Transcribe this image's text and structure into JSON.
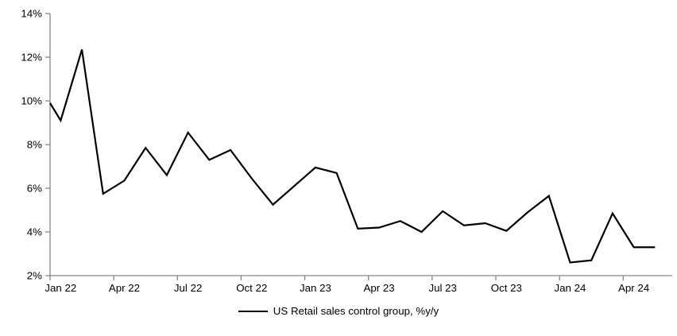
{
  "chart_data": {
    "type": "line",
    "title": "",
    "legend_label": "US Retail sales control group, %y/y",
    "legend_position": "bottom-center",
    "x": [
      "Jan 22",
      "Feb 22",
      "Mar 22",
      "Apr 22",
      "May 22",
      "Jun 22",
      "Jul 22",
      "Aug 22",
      "Sep 22",
      "Oct 22",
      "Nov 22",
      "Dec 22",
      "Jan 23",
      "Feb 23",
      "Mar 23",
      "Apr 23",
      "May 23",
      "Jun 23",
      "Jul 23",
      "Aug 23",
      "Sep 23",
      "Oct 23",
      "Nov 23",
      "Dec 23",
      "Jan 24",
      "Feb 24",
      "Mar 24",
      "Apr 24",
      "May 24"
    ],
    "series": [
      {
        "name": "US Retail sales control group, %y/y",
        "color": "#000000",
        "values": [
          9.1,
          12.35,
          5.75,
          6.35,
          7.85,
          6.6,
          8.55,
          7.3,
          7.75,
          6.45,
          5.25,
          6.1,
          6.95,
          6.7,
          4.15,
          4.2,
          4.5,
          4.0,
          4.95,
          4.3,
          4.4,
          4.05,
          4.9,
          5.65,
          2.6,
          2.7,
          4.85,
          3.3,
          3.3
        ]
      }
    ],
    "clipped_start_value": 9.9,
    "ylim": [
      2,
      14
    ],
    "yticks": [
      14,
      12,
      10,
      8,
      6,
      4,
      2
    ],
    "ytick_labels": [
      "14%",
      "12%",
      "10%",
      "8%",
      "6%",
      "4%",
      "2%"
    ],
    "xtick_labels": [
      "Jan 22",
      "Apr 22",
      "Jul 22",
      "Oct 22",
      "Jan 23",
      "Apr 23",
      "Jul 23",
      "Oct 23",
      "Jan 24",
      "Apr 24"
    ],
    "xtick_interval_months": 3,
    "grid": false,
    "axis_color": "#878787",
    "text_color": "#000000",
    "background": "#ffffff"
  }
}
